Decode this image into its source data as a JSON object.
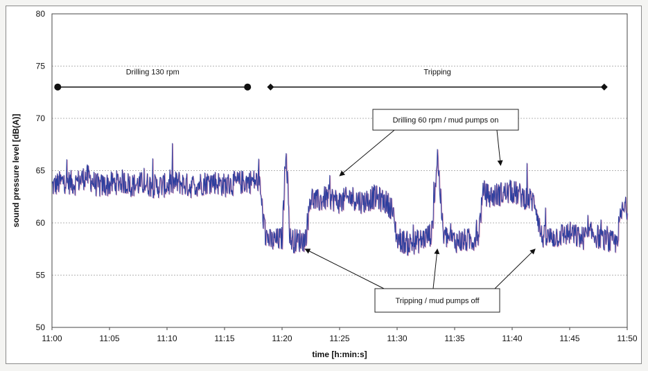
{
  "chart_data": {
    "type": "line",
    "title": "",
    "xlabel": "time [h:min:s]",
    "ylabel": "sound pressure level [dB(A)]",
    "xlim": [
      "11:00",
      "11:50"
    ],
    "ylim": [
      50,
      80
    ],
    "x_ticks": [
      "11:00",
      "11:05",
      "11:10",
      "11:15",
      "11:20",
      "11:25",
      "11:30",
      "11:35",
      "11:40",
      "11:45",
      "11:50"
    ],
    "y_ticks": [
      50,
      55,
      60,
      65,
      70,
      75,
      80
    ],
    "grid": "horizontal dashed",
    "colors": {
      "line": "#2d3f9e",
      "line_shadow": "#b0387a",
      "grid": "#9a9a9a"
    },
    "series": [
      {
        "x": [
          "11:00",
          "11:01",
          "11:02",
          "11:03",
          "11:04",
          "11:05",
          "11:06",
          "11:07",
          "11:08",
          "11:09",
          "11:10",
          "11:11",
          "11:12",
          "11:13",
          "11:14",
          "11:15",
          "11:16",
          "11:17",
          "11:18",
          "11:18:30",
          "11:19",
          "11:20",
          "11:20:20",
          "11:20:40",
          "11:21",
          "11:22",
          "11:22:30",
          "11:23",
          "11:24",
          "11:25",
          "11:26",
          "11:27",
          "11:28",
          "11:29",
          "11:29:30",
          "11:30",
          "11:31",
          "11:32",
          "11:33",
          "11:33:30",
          "11:34",
          "11:35",
          "11:36",
          "11:37",
          "11:37:30",
          "11:38",
          "11:39",
          "11:40",
          "11:41",
          "11:42",
          "11:42:30",
          "11:43",
          "11:44",
          "11:45",
          "11:46",
          "11:47",
          "11:48",
          "11:49",
          "11:49:30",
          "11:50"
        ],
        "values": [
          63.5,
          64.0,
          63.8,
          64.5,
          63.5,
          63.7,
          64.0,
          63.6,
          63.8,
          63.5,
          63.6,
          63.9,
          63.5,
          63.8,
          64.0,
          63.6,
          63.8,
          64.0,
          64.0,
          59.0,
          58.2,
          58.5,
          67.5,
          58.5,
          58.3,
          58.4,
          62.5,
          62.0,
          62.5,
          62.0,
          62.5,
          62.0,
          62.5,
          62.0,
          61.5,
          58.5,
          58.0,
          58.3,
          59.0,
          66.5,
          58.8,
          58.3,
          58.3,
          58.5,
          63.0,
          62.5,
          62.8,
          63.0,
          62.5,
          62.0,
          58.8,
          58.5,
          58.8,
          59.0,
          58.5,
          59.0,
          58.3,
          58.0,
          61.0,
          61.5
        ]
      }
    ],
    "annotations": {
      "phase_drilling": {
        "label": "Drilling 130 rpm",
        "y": 73,
        "x_start": "11:00:30",
        "x_end": "11:17"
      },
      "phase_tripping": {
        "label": "Tripping",
        "y": 73,
        "x_start": "11:19",
        "x_end": "11:48"
      },
      "callout_pumps_on": {
        "label": "Drilling 60 rpm / mud pumps on",
        "arrows_to": [
          [
            "11:25",
            64.5
          ],
          [
            "11:39",
            65.5
          ]
        ]
      },
      "callout_pumps_off": {
        "label": "Tripping / mud pumps off",
        "arrows_to": [
          [
            "11:22",
            57.5
          ],
          [
            "11:33:30",
            57.5
          ],
          [
            "11:42",
            57.5
          ]
        ]
      }
    }
  }
}
